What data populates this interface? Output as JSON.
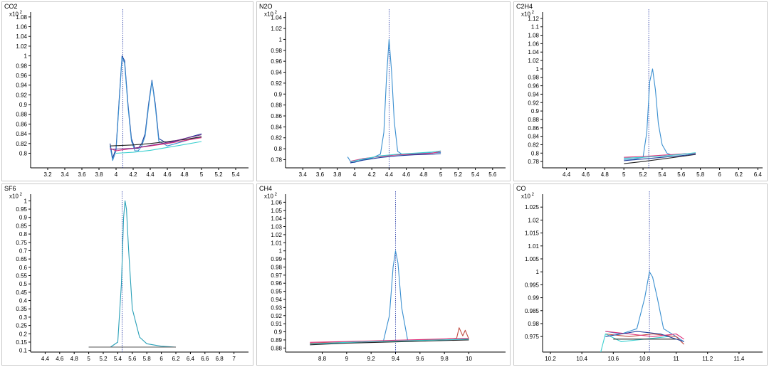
{
  "chart_data": [
    {
      "type": "line",
      "title": "CO2",
      "scale_label": "x10",
      "scale_exp": "2",
      "xlim": [
        3.0,
        5.55
      ],
      "ylim": [
        0.77,
        1.09
      ],
      "xticks": [
        "3.2",
        "3.4",
        "3.6",
        "3.8",
        "4",
        "4.2",
        "4.4",
        "4.6",
        "4.8",
        "5",
        "5.2",
        "5.4"
      ],
      "yticks": [
        "0.8",
        "0.82",
        "0.84",
        "0.86",
        "0.88",
        "0.9",
        "0.92",
        "0.94",
        "0.96",
        "0.98",
        "1",
        "1.02",
        "1.04",
        "1.06",
        "1.08"
      ],
      "marker_x": 4.08,
      "series": [
        {
          "color": "#1f3f9c",
          "x": [
            3.93,
            3.96,
            4.0,
            4.04,
            4.07,
            4.1,
            4.14,
            4.18,
            4.22,
            4.26,
            4.3,
            4.34,
            4.38,
            4.42,
            4.46,
            4.5,
            4.6,
            4.7,
            4.8,
            4.9,
            5.0
          ],
          "values": [
            0.82,
            0.79,
            0.81,
            0.92,
            1.0,
            0.99,
            0.9,
            0.83,
            0.81,
            0.81,
            0.82,
            0.84,
            0.9,
            0.95,
            0.9,
            0.83,
            0.82,
            0.825,
            0.83,
            0.835,
            0.84
          ]
        },
        {
          "color": "#3a8fd0",
          "x": [
            3.93,
            3.96,
            4.0,
            4.04,
            4.07,
            4.1,
            4.14,
            4.18,
            4.22,
            4.26,
            4.3,
            4.34,
            4.38,
            4.42,
            4.46,
            4.5,
            4.6,
            4.7,
            4.8,
            4.9,
            5.0
          ],
          "values": [
            0.815,
            0.785,
            0.805,
            0.915,
            0.998,
            0.985,
            0.895,
            0.825,
            0.805,
            0.805,
            0.815,
            0.835,
            0.895,
            0.948,
            0.895,
            0.825,
            0.815,
            0.82,
            0.825,
            0.83,
            0.833
          ]
        },
        {
          "color": "#e0307a",
          "x": [
            3.93,
            4.0,
            4.2,
            4.4,
            4.6,
            4.8,
            5.0
          ],
          "values": [
            0.81,
            0.805,
            0.81,
            0.815,
            0.82,
            0.826,
            0.832
          ]
        },
        {
          "color": "#3cd0d0",
          "x": [
            4.0,
            4.2,
            4.4,
            4.6,
            4.8,
            5.0
          ],
          "values": [
            0.8,
            0.802,
            0.806,
            0.812,
            0.818,
            0.824
          ]
        },
        {
          "color": "#222222",
          "x": [
            3.93,
            4.2,
            4.4,
            4.6,
            4.8,
            5.0
          ],
          "values": [
            0.815,
            0.817,
            0.82,
            0.824,
            0.828,
            0.834
          ]
        },
        {
          "color": "#7a2a8a",
          "x": [
            3.93,
            4.2,
            4.4,
            4.6,
            4.8,
            5.0
          ],
          "values": [
            0.808,
            0.81,
            0.816,
            0.822,
            0.83,
            0.838
          ]
        }
      ]
    },
    {
      "type": "line",
      "title": "N2O",
      "scale_label": "x10",
      "scale_exp": "2",
      "xlim": [
        3.2,
        5.75
      ],
      "ylim": [
        0.765,
        1.05
      ],
      "xticks": [
        "3.4",
        "3.6",
        "3.8",
        "4",
        "4.2",
        "4.4",
        "4.6",
        "4.8",
        "5",
        "5.2",
        "5.4",
        "5.6"
      ],
      "yticks": [
        "0.78",
        "0.8",
        "0.82",
        "0.84",
        "0.86",
        "0.88",
        "0.9",
        "0.92",
        "0.94",
        "0.96",
        "0.98",
        "1",
        "1.02",
        "1.04"
      ],
      "marker_x": 4.4,
      "series": [
        {
          "color": "#3a8fd0",
          "x": [
            3.92,
            3.96,
            4.0,
            4.1,
            4.2,
            4.3,
            4.34,
            4.37,
            4.4,
            4.43,
            4.46,
            4.5,
            4.55,
            4.6,
            4.7,
            4.8,
            5.0
          ],
          "values": [
            0.785,
            0.775,
            0.775,
            0.78,
            0.783,
            0.79,
            0.83,
            0.93,
            1.0,
            0.94,
            0.85,
            0.795,
            0.79,
            0.79,
            0.791,
            0.792,
            0.793
          ]
        },
        {
          "color": "#e0307a",
          "x": [
            3.95,
            4.1,
            4.3,
            4.5,
            4.7,
            4.9,
            5.0
          ],
          "values": [
            0.777,
            0.782,
            0.786,
            0.789,
            0.79,
            0.792,
            0.795
          ]
        },
        {
          "color": "#1f3f9c",
          "x": [
            3.95,
            4.1,
            4.3,
            4.5,
            4.7,
            4.9,
            5.0
          ],
          "values": [
            0.774,
            0.779,
            0.784,
            0.787,
            0.789,
            0.79,
            0.791
          ]
        },
        {
          "color": "#3cd0d0",
          "x": [
            3.95,
            4.1,
            4.3,
            4.5,
            4.7,
            4.9,
            5.0
          ],
          "values": [
            0.776,
            0.781,
            0.787,
            0.79,
            0.792,
            0.794,
            0.796
          ]
        }
      ]
    },
    {
      "type": "line",
      "title": "C2H4",
      "scale_label": "x10",
      "scale_exp": "2",
      "xlim": [
        4.15,
        6.45
      ],
      "ylim": [
        0.765,
        1.135
      ],
      "xticks": [
        "4.4",
        "4.6",
        "4.8",
        "5",
        "5.2",
        "5.4",
        "5.6",
        "5.8",
        "6",
        "6.2",
        "6.4"
      ],
      "yticks": [
        "0.78",
        "0.8",
        "0.82",
        "0.84",
        "0.86",
        "0.88",
        "0.9",
        "0.92",
        "0.94",
        "0.96",
        "0.98",
        "1",
        "1.02",
        "1.04",
        "1.06",
        "1.08",
        "1.1",
        "1.12"
      ],
      "marker_x": 5.26,
      "series": [
        {
          "color": "#3a8fd0",
          "x": [
            5.0,
            5.1,
            5.2,
            5.24,
            5.27,
            5.3,
            5.33,
            5.36,
            5.4,
            5.45,
            5.5,
            5.6,
            5.75
          ],
          "values": [
            0.785,
            0.786,
            0.79,
            0.85,
            0.97,
            1.0,
            0.95,
            0.87,
            0.82,
            0.8,
            0.795,
            0.798,
            0.8
          ]
        },
        {
          "color": "#222222",
          "x": [
            5.0,
            5.2,
            5.4,
            5.6,
            5.75
          ],
          "values": [
            0.775,
            0.78,
            0.786,
            0.792,
            0.797
          ]
        },
        {
          "color": "#e0307a",
          "x": [
            5.0,
            5.2,
            5.4,
            5.6,
            5.75
          ],
          "values": [
            0.79,
            0.792,
            0.795,
            0.798,
            0.8
          ]
        },
        {
          "color": "#1f3f9c",
          "x": [
            5.0,
            5.2,
            5.4,
            5.6,
            5.75
          ],
          "values": [
            0.782,
            0.786,
            0.79,
            0.794,
            0.798
          ]
        },
        {
          "color": "#3cd0d0",
          "x": [
            5.0,
            5.2,
            5.4,
            5.6,
            5.75
          ],
          "values": [
            0.788,
            0.79,
            0.793,
            0.797,
            0.801
          ]
        }
      ]
    },
    {
      "type": "line",
      "title": "SF6",
      "scale_label": "x10",
      "scale_exp": "2",
      "xlim": [
        4.2,
        7.2
      ],
      "ylim": [
        0.09,
        1.04
      ],
      "xticks": [
        "4.4",
        "4.6",
        "4.8",
        "5",
        "5.2",
        "5.4",
        "5.6",
        "5.8",
        "6",
        "6.2",
        "6.4",
        "6.6",
        "6.8",
        "7"
      ],
      "yticks": [
        "0.1",
        "0.15",
        "0.2",
        "0.25",
        "0.3",
        "0.35",
        "0.4",
        "0.45",
        "0.5",
        "0.55",
        "0.6",
        "0.65",
        "0.7",
        "0.75",
        "0.8",
        "0.85",
        "0.9",
        "0.95",
        "1"
      ],
      "marker_x": 5.46,
      "series": [
        {
          "color": "#2aa0b8",
          "x": [
            5.0,
            5.3,
            5.4,
            5.45,
            5.48,
            5.5,
            5.52,
            5.55,
            5.6,
            5.7,
            5.8,
            6.0,
            6.2
          ],
          "values": [
            0.12,
            0.12,
            0.15,
            0.5,
            0.9,
            1.0,
            0.95,
            0.7,
            0.35,
            0.18,
            0.14,
            0.125,
            0.12
          ]
        },
        {
          "color": "#555555",
          "x": [
            5.0,
            5.5,
            6.0,
            6.2
          ],
          "values": [
            0.12,
            0.12,
            0.12,
            0.12
          ]
        }
      ]
    },
    {
      "type": "line",
      "title": "CH4",
      "scale_label": "x10",
      "scale_exp": "2",
      "xlim": [
        8.5,
        10.3
      ],
      "ylim": [
        0.875,
        1.07
      ],
      "xticks": [
        "8.8",
        "9",
        "9.2",
        "9.4",
        "9.6",
        "9.8",
        "10"
      ],
      "yticks": [
        "0.88",
        "0.89",
        "0.9",
        "0.91",
        "0.92",
        "0.93",
        "0.94",
        "0.95",
        "0.96",
        "0.97",
        "0.98",
        "0.99",
        "1",
        "1.01",
        "1.02",
        "1.03",
        "1.04",
        "1.05",
        "1.06"
      ],
      "marker_x": 9.4,
      "series": [
        {
          "color": "#3a8fd0",
          "x": [
            8.7,
            9.0,
            9.3,
            9.35,
            9.38,
            9.4,
            9.42,
            9.45,
            9.5,
            9.7,
            10.0
          ],
          "values": [
            0.885,
            0.886,
            0.888,
            0.92,
            0.98,
            1.0,
            0.985,
            0.93,
            0.889,
            0.89,
            0.89
          ]
        },
        {
          "color": "#c04a40",
          "x": [
            8.7,
            9.0,
            9.5,
            9.8,
            9.9,
            9.92,
            9.95,
            9.97,
            10.0
          ],
          "values": [
            0.886,
            0.887,
            0.889,
            0.891,
            0.892,
            0.905,
            0.895,
            0.902,
            0.891
          ]
        },
        {
          "color": "#222222",
          "x": [
            8.7,
            9.0,
            9.5,
            10.0
          ],
          "values": [
            0.884,
            0.886,
            0.888,
            0.89
          ]
        },
        {
          "color": "#e0307a",
          "x": [
            8.7,
            9.0,
            9.5,
            10.0
          ],
          "values": [
            0.887,
            0.888,
            0.89,
            0.892
          ]
        },
        {
          "color": "#3cd0d0",
          "x": [
            8.7,
            9.0,
            9.5,
            10.0
          ],
          "values": [
            0.885,
            0.887,
            0.889,
            0.891
          ]
        }
      ]
    },
    {
      "type": "line",
      "title": "CO",
      "scale_label": "x10",
      "scale_exp": "2",
      "xlim": [
        10.15,
        11.55
      ],
      "ylim": [
        0.969,
        1.03
      ],
      "xticks": [
        "10.2",
        "10.4",
        "10.6",
        "10.8",
        "11",
        "11.2",
        "11.4"
      ],
      "yticks": [
        "0.975",
        "0.98",
        "0.985",
        "0.99",
        "0.995",
        "1",
        "1.005",
        "1.01",
        "1.015",
        "1.02",
        "1.025"
      ],
      "marker_x": 10.83,
      "series": [
        {
          "color": "#3a8fd0",
          "x": [
            10.55,
            10.65,
            10.75,
            10.8,
            10.83,
            10.85,
            10.88,
            10.92,
            11.0,
            11.05
          ],
          "values": [
            0.977,
            0.976,
            0.978,
            0.99,
            1.0,
            0.998,
            0.99,
            0.978,
            0.975,
            0.973
          ]
        },
        {
          "color": "#c04a40",
          "x": [
            10.55,
            10.7,
            10.85,
            11.0,
            11.05
          ],
          "values": [
            0.976,
            0.975,
            0.976,
            0.975,
            0.972
          ]
        },
        {
          "color": "#e0307a",
          "x": [
            10.55,
            10.7,
            10.85,
            11.0,
            11.05
          ],
          "values": [
            0.977,
            0.976,
            0.975,
            0.976,
            0.974
          ]
        },
        {
          "color": "#3cd0d0",
          "x": [
            10.52,
            10.55,
            10.65,
            10.8,
            10.95
          ],
          "values": [
            0.969,
            0.976,
            0.973,
            0.974,
            0.975
          ]
        },
        {
          "color": "#222222",
          "x": [
            10.6,
            10.8,
            11.0
          ],
          "values": [
            0.974,
            0.974,
            0.974
          ]
        },
        {
          "color": "#1f3f9c",
          "x": [
            10.55,
            10.75,
            10.9,
            11.05
          ],
          "values": [
            0.975,
            0.977,
            0.976,
            0.973
          ]
        }
      ]
    }
  ]
}
